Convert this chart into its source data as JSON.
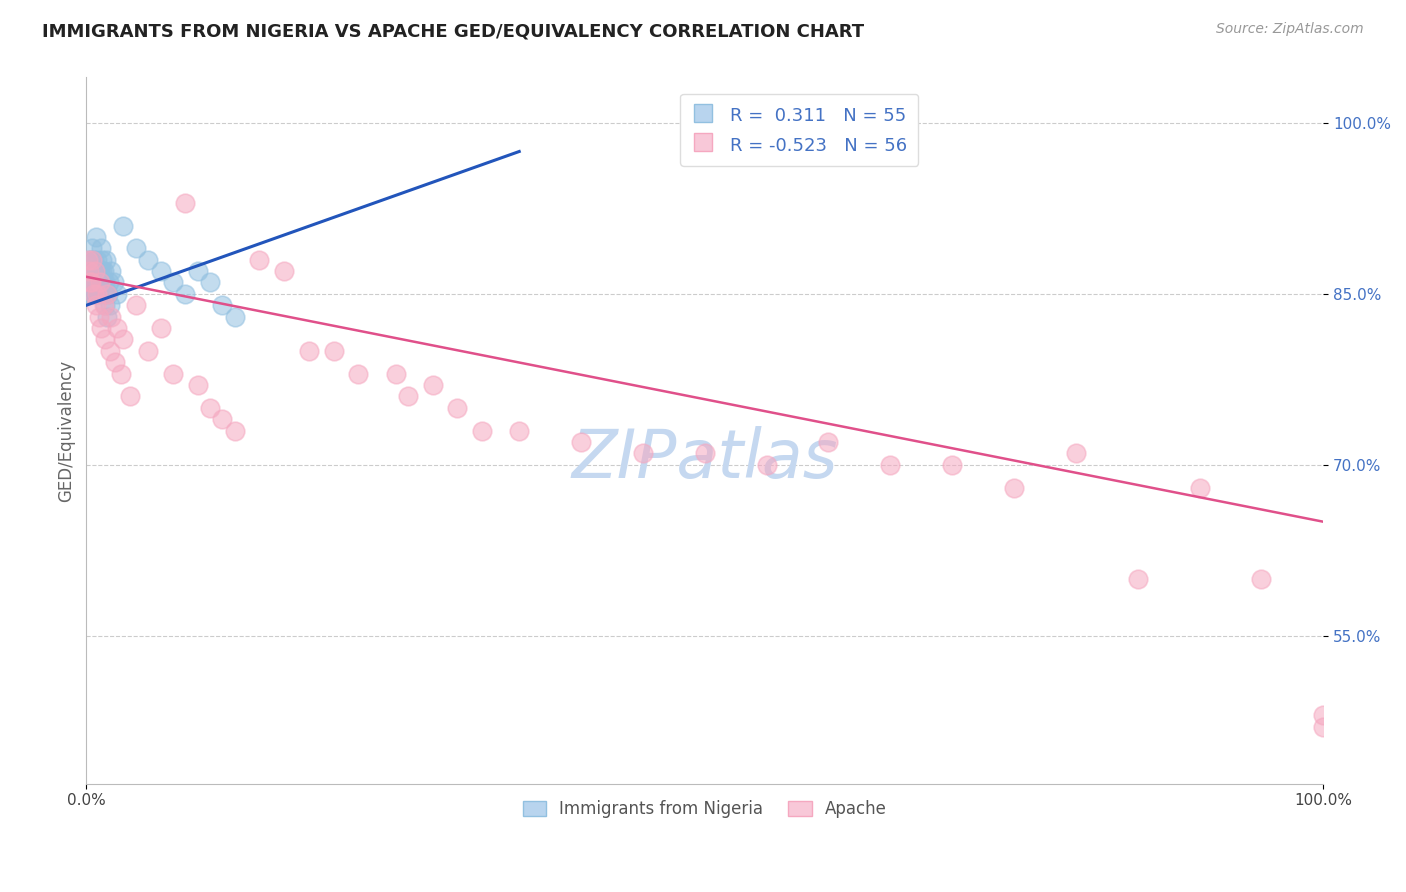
{
  "title": "IMMIGRANTS FROM NIGERIA VS APACHE GED/EQUIVALENCY CORRELATION CHART",
  "source_text": "Source: ZipAtlas.com",
  "ylabel": "GED/Equivalency",
  "legend_label_1": "Immigrants from Nigeria",
  "legend_label_2": "Apache",
  "r1": 0.311,
  "n1": 55,
  "r2": -0.523,
  "n2": 56,
  "color_blue": "#92c0e0",
  "color_pink": "#f5a8c0",
  "trendline_blue": "#2255bb",
  "trendline_pink": "#e0508a",
  "watermark": "ZIPatlas",
  "watermark_color": "#c5d8f0",
  "xlim": [
    0.0,
    100.0
  ],
  "ylim": [
    42.0,
    104.0
  ],
  "yticks": [
    55.0,
    70.0,
    85.0,
    100.0
  ],
  "ytick_labels": [
    "55.0%",
    "70.0%",
    "85.0%",
    "100.0%"
  ],
  "xtick_labels": [
    "0.0%",
    "100.0%"
  ],
  "background_color": "#ffffff",
  "plot_bg_color": "#ffffff",
  "grid_color": "#cccccc",
  "blue_x": [
    0.05,
    0.1,
    0.15,
    0.2,
    0.25,
    0.3,
    0.35,
    0.4,
    0.5,
    0.6,
    0.7,
    0.8,
    0.9,
    1.0,
    1.1,
    1.2,
    1.3,
    1.4,
    1.5,
    1.6,
    1.8,
    2.0,
    2.2,
    2.5,
    3.0,
    4.0,
    5.0,
    6.0,
    7.0,
    8.0,
    9.0,
    10.0,
    11.0,
    12.0,
    0.08,
    0.12,
    0.18,
    0.22,
    0.28,
    0.38,
    0.45,
    0.55,
    0.65,
    0.75,
    0.85,
    0.95,
    1.05,
    1.15,
    1.25,
    1.35,
    1.45,
    1.55,
    1.65,
    1.75,
    1.9
  ],
  "blue_y": [
    85,
    86,
    86,
    85,
    87,
    86,
    88,
    87,
    89,
    88,
    87,
    90,
    88,
    87,
    87,
    89,
    88,
    87,
    86,
    88,
    86,
    87,
    86,
    85,
    91,
    89,
    88,
    87,
    86,
    85,
    87,
    86,
    84,
    83,
    85,
    86,
    87,
    88,
    87,
    86,
    85,
    87,
    86,
    85,
    87,
    86,
    85,
    86,
    87,
    86,
    85,
    84,
    83,
    85,
    84
  ],
  "pink_x": [
    0.1,
    0.2,
    0.3,
    0.5,
    0.7,
    0.9,
    1.1,
    1.4,
    1.7,
    2.0,
    2.5,
    3.0,
    4.0,
    5.0,
    6.0,
    7.0,
    8.0,
    9.0,
    10.0,
    12.0,
    14.0,
    16.0,
    18.0,
    20.0,
    22.0,
    25.0,
    28.0,
    30.0,
    35.0,
    40.0,
    45.0,
    50.0,
    55.0,
    60.0,
    65.0,
    70.0,
    75.0,
    80.0,
    85.0,
    90.0,
    95.0,
    100.0,
    0.4,
    0.6,
    0.8,
    1.0,
    1.2,
    1.5,
    1.9,
    2.3,
    2.8,
    3.5,
    11.0,
    26.0,
    32.0,
    100.0
  ],
  "pink_y": [
    88,
    87,
    86,
    88,
    87,
    85,
    86,
    84,
    85,
    83,
    82,
    81,
    84,
    80,
    82,
    78,
    93,
    77,
    75,
    73,
    88,
    87,
    80,
    80,
    78,
    78,
    77,
    75,
    73,
    72,
    71,
    71,
    70,
    72,
    70,
    70,
    68,
    71,
    60,
    68,
    60,
    47,
    86,
    85,
    84,
    83,
    82,
    81,
    80,
    79,
    78,
    76,
    74,
    76,
    73,
    48
  ],
  "blue_trend_x0": 0.0,
  "blue_trend_y0": 84.0,
  "blue_trend_x1": 35.0,
  "blue_trend_y1": 97.5,
  "pink_trend_x0": 0.0,
  "pink_trend_y0": 86.5,
  "pink_trend_x1": 100.0,
  "pink_trend_y1": 65.0
}
